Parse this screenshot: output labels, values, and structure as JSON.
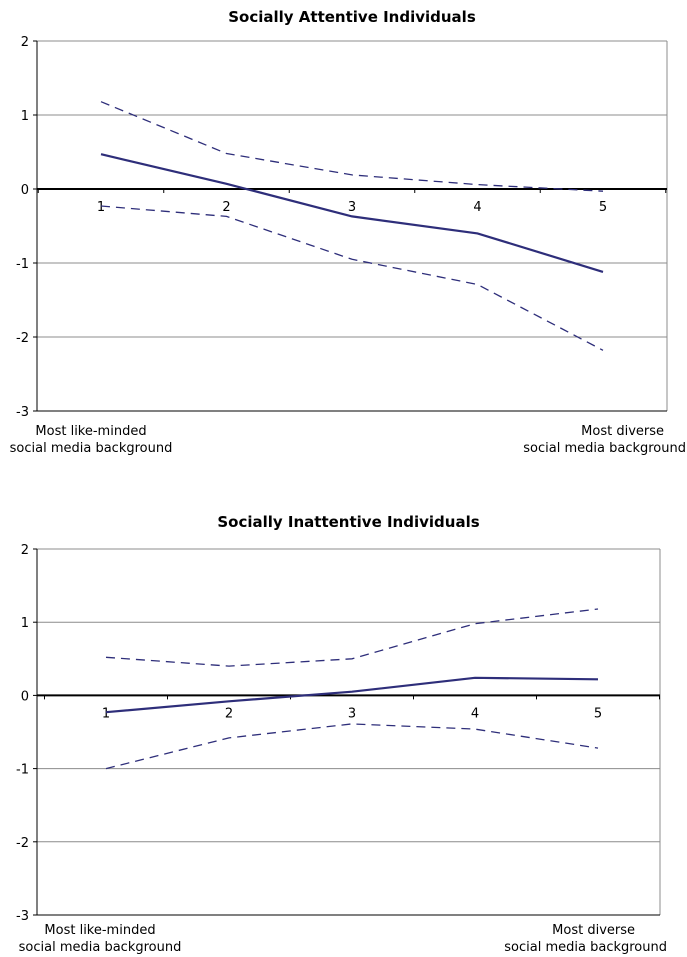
{
  "chart_data": [
    {
      "type": "line",
      "title": "Socially Attentive Individuals",
      "xlabel": "",
      "ylabel": "",
      "x": [
        "1",
        "2",
        "3",
        "4",
        "5"
      ],
      "ylim": [
        -3,
        2
      ],
      "y_ticks": [
        "2",
        "1",
        "0",
        "-1",
        "-2",
        "-3"
      ],
      "grid": true,
      "left_label": [
        "Most like-minded",
        "social media background"
      ],
      "right_label": [
        "Most diverse",
        "social media background"
      ],
      "series": [
        {
          "style": "solid",
          "values": [
            0.47,
            0.07,
            -0.37,
            -0.6,
            -1.12
          ]
        },
        {
          "style": "dashed",
          "values": [
            1.18,
            0.48,
            0.19,
            0.06,
            -0.03
          ]
        },
        {
          "style": "dashed",
          "values": [
            -0.23,
            -0.37,
            -0.95,
            -1.29,
            -2.18
          ]
        }
      ],
      "colors": {
        "line": "#2e2e7a"
      }
    },
    {
      "type": "line",
      "title": "Socially Inattentive Individuals",
      "xlabel": "",
      "ylabel": "",
      "x": [
        "1",
        "2",
        "3",
        "4",
        "5"
      ],
      "ylim": [
        -3,
        2
      ],
      "y_ticks": [
        "2",
        "1",
        "0",
        "-1",
        "-2",
        "-3"
      ],
      "grid": true,
      "left_label": [
        "Most like-minded",
        "social media background"
      ],
      "right_label": [
        "Most diverse",
        "social media background"
      ],
      "series": [
        {
          "style": "solid",
          "values": [
            -0.23,
            -0.08,
            0.05,
            0.24,
            0.22
          ]
        },
        {
          "style": "dashed",
          "values": [
            0.52,
            0.4,
            0.5,
            0.98,
            1.18
          ]
        },
        {
          "style": "dashed",
          "values": [
            -1.0,
            -0.58,
            -0.39,
            -0.46,
            -0.72
          ]
        }
      ],
      "colors": {
        "line": "#2e2e7a"
      }
    }
  ]
}
